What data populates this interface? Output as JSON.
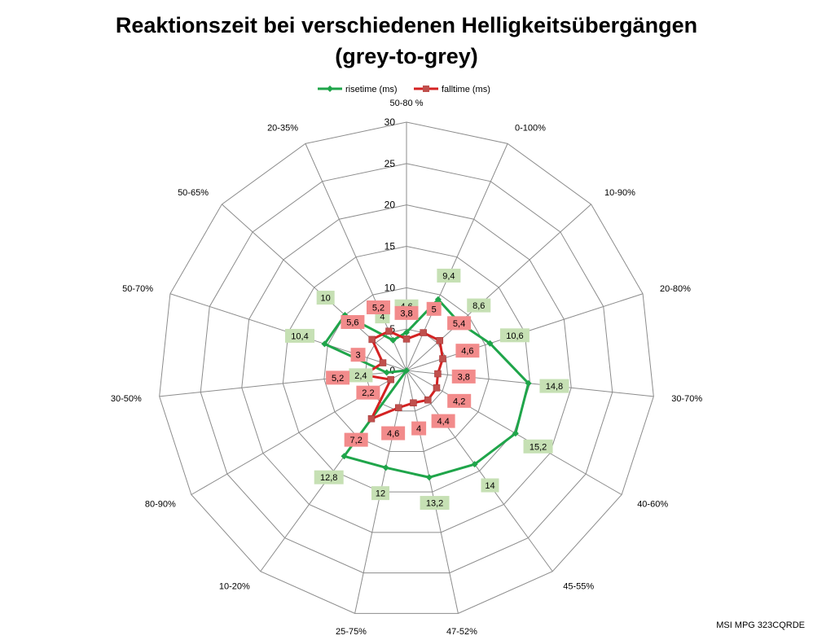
{
  "chart_data": {
    "type": "radar",
    "title": "Reaktionszeit bei verschiedenen Helligkeitsübergängen",
    "subtitle": "(grey-to-grey)",
    "categories": [
      "50-80 %",
      "0-100%",
      "10-90%",
      "20-80%",
      "30-70%",
      "40-60%",
      "45-55%",
      "47-52%",
      "25-75%",
      "10-20%",
      "80-90%",
      "30-50%",
      "50-70%",
      "50-65%",
      "20-35%"
    ],
    "rlim": [
      0,
      30
    ],
    "ticks": [
      0,
      5,
      10,
      15,
      20,
      25,
      30
    ],
    "grid": true,
    "legend_position": "top",
    "series": [
      {
        "name": "risetime (ms)",
        "color": "#1fa54a",
        "label_bg": "#c6e0b4",
        "values": [
          4.6,
          9.4,
          8.6,
          10.6,
          14.8,
          15.2,
          14,
          13.2,
          12,
          12.8,
          0,
          2.4,
          10.4,
          10,
          4
        ],
        "labels": [
          "4,6",
          "9,4",
          "8,6",
          "10,6",
          "14,8",
          "15,2",
          "14",
          "13,2",
          "12",
          "12,8",
          "",
          "2,4",
          "10,4",
          "10",
          "4"
        ]
      },
      {
        "name": "falltime (ms)",
        "color": "#d42222",
        "label_bg": "#f28b8b",
        "values": [
          3.8,
          5,
          5.4,
          4.6,
          3.8,
          4.2,
          4.4,
          4,
          4.6,
          7.2,
          2.2,
          5.2,
          3,
          5.6,
          5.2
        ],
        "labels": [
          "3,8",
          "5",
          "5,4",
          "4,6",
          "3,8",
          "4,2",
          "4,4",
          "4",
          "4,6",
          "7,2",
          "2,2",
          "5,2",
          "3",
          "5,6",
          "5,2"
        ]
      }
    ]
  },
  "footer": "MSI MPG 323CQRDE"
}
